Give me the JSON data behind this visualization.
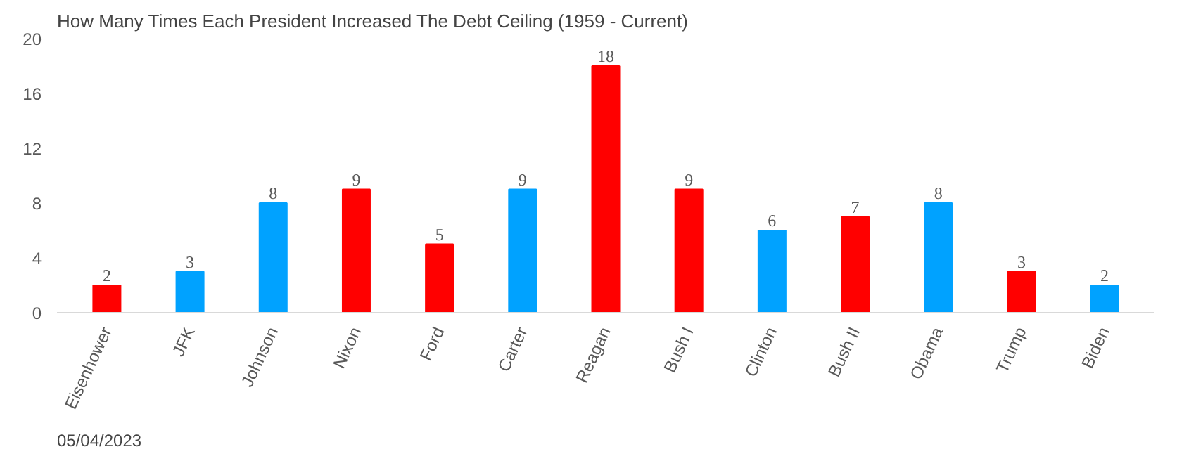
{
  "chart_data": {
    "type": "bar",
    "title": "How Many Times Each President Increased The Debt Ceiling (1959 - Current)",
    "categories": [
      "Eisenhower",
      "JFK",
      "Johnson",
      "Nixon",
      "Ford",
      "Carter",
      "Reagan",
      "Bush I",
      "Clinton",
      "Bush II",
      "Obama",
      "Trump",
      "Biden"
    ],
    "values": [
      2,
      3,
      8,
      9,
      5,
      9,
      18,
      9,
      6,
      7,
      8,
      3,
      2
    ],
    "colors": [
      "#ff0000",
      "#00a2ff",
      "#00a2ff",
      "#ff0000",
      "#ff0000",
      "#00a2ff",
      "#ff0000",
      "#ff0000",
      "#00a2ff",
      "#ff0000",
      "#00a2ff",
      "#ff0000",
      "#00a2ff"
    ],
    "ylim": [
      0,
      20
    ],
    "yticks": [
      0,
      4,
      8,
      12,
      16,
      20
    ],
    "grid": false,
    "data_labels": true,
    "annotations": [
      "05/04/2023"
    ]
  }
}
